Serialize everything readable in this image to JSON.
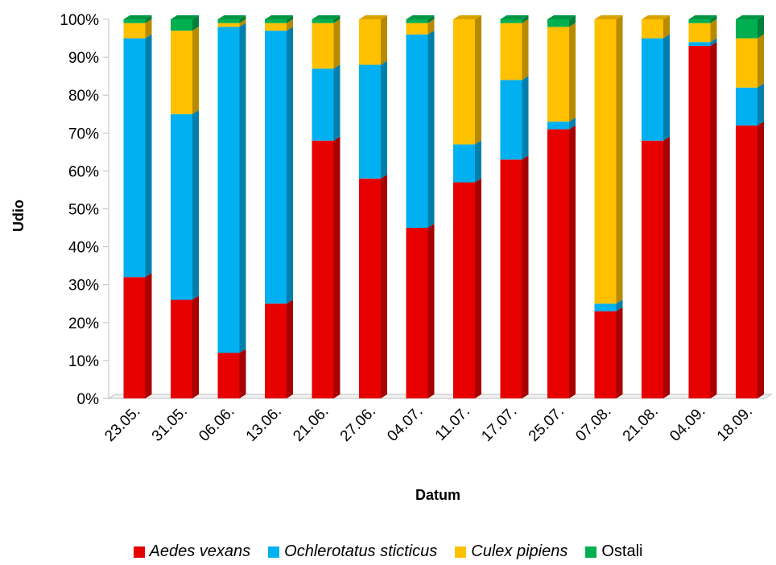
{
  "chart_data": {
    "type": "bar",
    "stacked": true,
    "percent_stacked": true,
    "style": "3d-column",
    "title": "",
    "xlabel": "Datum",
    "ylabel": "Udio",
    "ylim": [
      0,
      100
    ],
    "yticks": [
      "0%",
      "10%",
      "20%",
      "30%",
      "40%",
      "50%",
      "60%",
      "70%",
      "80%",
      "90%",
      "100%"
    ],
    "grid": false,
    "legend_position": "bottom",
    "categories": [
      "23.05.",
      "31.05.",
      "06.06.",
      "13.06.",
      "21.06.",
      "27.06.",
      "04.07.",
      "11.07.",
      "17.07.",
      "25.07.",
      "07.08.",
      "21.08.",
      "04.09.",
      "18.09."
    ],
    "series": [
      {
        "name": "Aedes vexans",
        "italic": true,
        "color": "#e60000",
        "values": [
          32,
          26,
          12,
          25,
          68,
          58,
          45,
          57,
          63,
          71,
          23,
          68,
          93,
          72
        ]
      },
      {
        "name": "Ochlerotatus sticticus",
        "italic": true,
        "color": "#00b0f0",
        "values": [
          63,
          49,
          86,
          72,
          19,
          30,
          51,
          10,
          21,
          2,
          2,
          27,
          1,
          10
        ]
      },
      {
        "name": "Culex pipiens",
        "italic": true,
        "color": "#ffc000",
        "values": [
          4,
          22,
          1,
          2,
          12,
          12,
          3,
          33,
          15,
          25,
          75,
          5,
          5,
          13
        ]
      },
      {
        "name": "Ostali",
        "italic": false,
        "color": "#00b050",
        "values": [
          1,
          3,
          1,
          1,
          1,
          0,
          1,
          0,
          1,
          2,
          0,
          0,
          1,
          5
        ]
      }
    ]
  }
}
